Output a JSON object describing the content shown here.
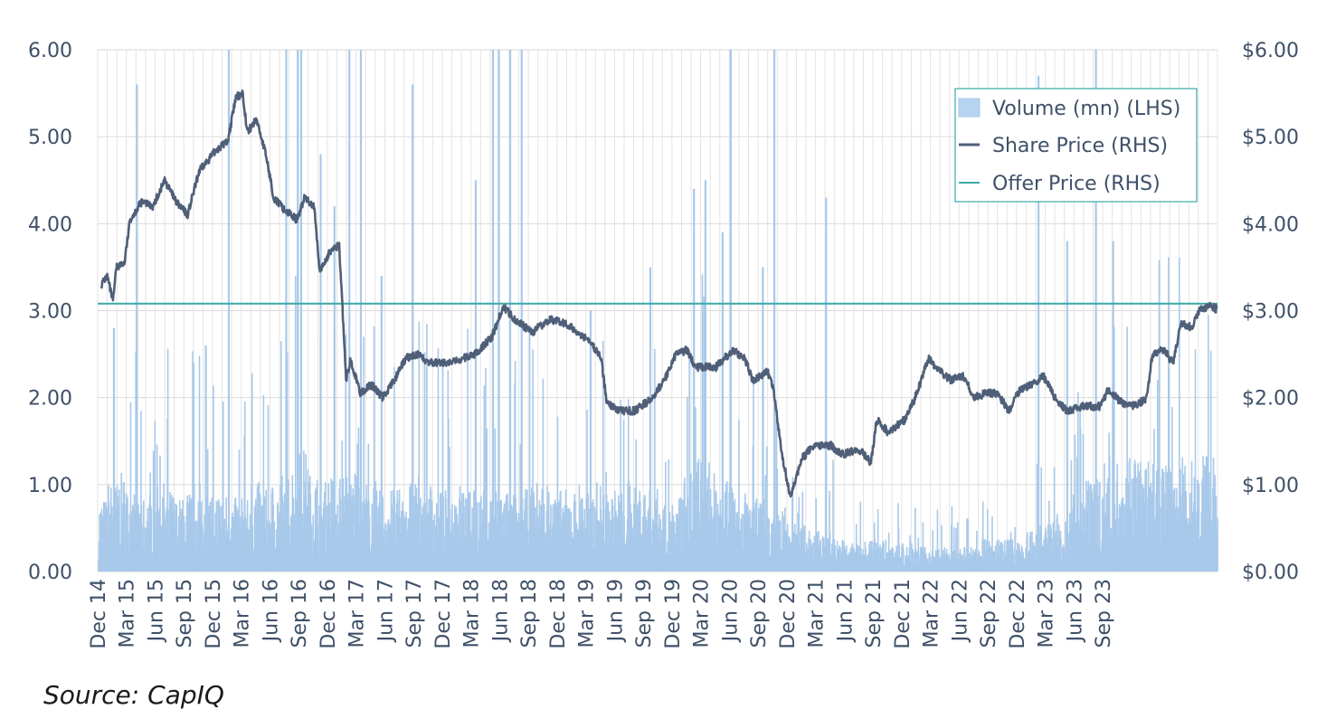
{
  "chart_data": {
    "type": "bar+line",
    "title": "",
    "source": "Source: CapIQ",
    "x_tick_labels": [
      "Dec 14",
      "Mar 15",
      "Jun 15",
      "Sep 15",
      "Dec 15",
      "Mar 16",
      "Jun 16",
      "Sep 16",
      "Dec 16",
      "Mar 17",
      "Jun 17",
      "Sep 17",
      "Dec 17",
      "Mar 18",
      "Jun 18",
      "Sep 18",
      "Dec 18",
      "Mar 19",
      "Jun 19",
      "Sep 19",
      "Dec 19",
      "Mar 20",
      "Jun 20",
      "Sep 20",
      "Dec 20",
      "Mar 21",
      "Jun 21",
      "Sep 21",
      "Dec 21",
      "Mar 22",
      "Jun 22",
      "Sep 22",
      "Dec 22",
      "Mar 23",
      "Jun 23",
      "Sep 23"
    ],
    "y_left": {
      "ticks": [
        "0.00",
        "1.00",
        "2.00",
        "3.00",
        "4.00",
        "5.00",
        "6.00"
      ],
      "range": [
        0,
        6
      ]
    },
    "y_right": {
      "ticks": [
        "$0.00",
        "$1.00",
        "$2.00",
        "$3.00",
        "$4.00",
        "$5.00",
        "$6.00"
      ],
      "range": [
        0,
        6
      ]
    },
    "grid": true,
    "legend_position": "top-right",
    "colors": {
      "volume": "#a8c9ea",
      "share_price": "#4f5f78",
      "offer_price": "#3aa9a6",
      "grid": "#d9d9d9",
      "text": "#3f5068"
    },
    "series": [
      {
        "name": "Volume (mn) (LHS)",
        "type": "bar",
        "axis": "left",
        "baseline_monthly": [
          0.45,
          0.55,
          0.6,
          0.5,
          0.45,
          0.5,
          0.55,
          0.5,
          0.45,
          0.5,
          0.55,
          0.5,
          0.5,
          0.5,
          0.45,
          0.5,
          0.55,
          0.5,
          0.55,
          0.6,
          0.7,
          0.75,
          0.6,
          0.55,
          0.6,
          0.65,
          0.6,
          0.55,
          0.55,
          0.5,
          0.5,
          0.5,
          0.55,
          0.6,
          0.55,
          0.5,
          0.5,
          0.55,
          0.55,
          0.5,
          0.5,
          0.5,
          0.5,
          0.5,
          0.5,
          0.55,
          0.55,
          0.5,
          0.5,
          0.5,
          0.55,
          0.5,
          0.55,
          0.5,
          0.5,
          0.55,
          0.55,
          0.5,
          0.5,
          0.45,
          0.45,
          0.6,
          0.75,
          0.7,
          0.6,
          0.55,
          0.55,
          0.5,
          0.45,
          0.45,
          0.35,
          0.4,
          0.3,
          0.3,
          0.25,
          0.25,
          0.25,
          0.2,
          0.18,
          0.18,
          0.2,
          0.2,
          0.2,
          0.18,
          0.18,
          0.15,
          0.15,
          0.15,
          0.15,
          0.15,
          0.15,
          0.15,
          0.2,
          0.2,
          0.2,
          0.2,
          0.2,
          0.25,
          0.3,
          0.3,
          0.35,
          0.4,
          0.45,
          0.55,
          0.6,
          0.7
        ],
        "peaks": [
          [
            2015.25,
            5.6
          ],
          [
            2015.05,
            2.8
          ],
          [
            2015.85,
            2.6
          ],
          [
            2016.05,
            6
          ],
          [
            2016.55,
            6
          ],
          [
            2016.65,
            6
          ],
          [
            2016.68,
            6
          ],
          [
            2016.85,
            4.8
          ],
          [
            2016.97,
            4.2
          ],
          [
            2017.1,
            6
          ],
          [
            2017.2,
            6
          ],
          [
            2017.38,
            3.4
          ],
          [
            2017.65,
            5.6
          ],
          [
            2018.2,
            4.5
          ],
          [
            2018.35,
            6
          ],
          [
            2018.4,
            6
          ],
          [
            2018.5,
            6
          ],
          [
            2018.6,
            6
          ],
          [
            2019.2,
            3
          ],
          [
            2019.72,
            3.5
          ],
          [
            2020.1,
            4.4
          ],
          [
            2020.2,
            4.5
          ],
          [
            2020.35,
            3.9
          ],
          [
            2020.42,
            6
          ],
          [
            2020.8,
            6
          ],
          [
            2020.7,
            3.5
          ],
          [
            2021.25,
            4.3
          ],
          [
            2023.1,
            5.7
          ],
          [
            2023.35,
            3.8
          ],
          [
            2023.6,
            6
          ],
          [
            2023.75,
            3.8
          ]
        ]
      },
      {
        "name": "Share Price (RHS)",
        "type": "line",
        "axis": "right",
        "points": [
          [
            2014.95,
            3.3
          ],
          [
            2015.0,
            3.4
          ],
          [
            2015.05,
            3.1
          ],
          [
            2015.08,
            3.5
          ],
          [
            2015.15,
            3.55
          ],
          [
            2015.2,
            4.05
          ],
          [
            2015.3,
            4.25
          ],
          [
            2015.4,
            4.2
          ],
          [
            2015.5,
            4.5
          ],
          [
            2015.6,
            4.25
          ],
          [
            2015.7,
            4.1
          ],
          [
            2015.8,
            4.6
          ],
          [
            2015.95,
            4.85
          ],
          [
            2016.05,
            4.95
          ],
          [
            2016.12,
            5.45
          ],
          [
            2016.18,
            5.5
          ],
          [
            2016.22,
            5.05
          ],
          [
            2016.3,
            5.2
          ],
          [
            2016.38,
            4.8
          ],
          [
            2016.45,
            4.3
          ],
          [
            2016.55,
            4.15
          ],
          [
            2016.65,
            4.05
          ],
          [
            2016.72,
            4.3
          ],
          [
            2016.8,
            4.2
          ],
          [
            2016.85,
            3.45
          ],
          [
            2016.95,
            3.7
          ],
          [
            2017.02,
            3.75
          ],
          [
            2017.08,
            2.2
          ],
          [
            2017.12,
            2.45
          ],
          [
            2017.2,
            2.05
          ],
          [
            2017.3,
            2.15
          ],
          [
            2017.4,
            2.0
          ],
          [
            2017.5,
            2.2
          ],
          [
            2017.6,
            2.45
          ],
          [
            2017.7,
            2.5
          ],
          [
            2017.8,
            2.4
          ],
          [
            2018.0,
            2.4
          ],
          [
            2018.2,
            2.5
          ],
          [
            2018.35,
            2.7
          ],
          [
            2018.45,
            3.05
          ],
          [
            2018.55,
            2.9
          ],
          [
            2018.7,
            2.75
          ],
          [
            2018.85,
            2.9
          ],
          [
            2019.0,
            2.85
          ],
          [
            2019.1,
            2.75
          ],
          [
            2019.2,
            2.65
          ],
          [
            2019.3,
            2.45
          ],
          [
            2019.35,
            1.95
          ],
          [
            2019.45,
            1.85
          ],
          [
            2019.6,
            1.85
          ],
          [
            2019.75,
            2.0
          ],
          [
            2019.85,
            2.2
          ],
          [
            2019.95,
            2.5
          ],
          [
            2020.05,
            2.55
          ],
          [
            2020.12,
            2.35
          ],
          [
            2020.3,
            2.35
          ],
          [
            2020.45,
            2.55
          ],
          [
            2020.55,
            2.45
          ],
          [
            2020.62,
            2.2
          ],
          [
            2020.75,
            2.3
          ],
          [
            2020.8,
            2.1
          ],
          [
            2020.88,
            1.3
          ],
          [
            2020.95,
            0.85
          ],
          [
            2021.05,
            1.3
          ],
          [
            2021.15,
            1.45
          ],
          [
            2021.3,
            1.45
          ],
          [
            2021.4,
            1.35
          ],
          [
            2021.55,
            1.4
          ],
          [
            2021.65,
            1.25
          ],
          [
            2021.7,
            1.75
          ],
          [
            2021.8,
            1.6
          ],
          [
            2021.95,
            1.75
          ],
          [
            2022.05,
            2.05
          ],
          [
            2022.15,
            2.45
          ],
          [
            2022.25,
            2.3
          ],
          [
            2022.35,
            2.2
          ],
          [
            2022.45,
            2.25
          ],
          [
            2022.55,
            2.0
          ],
          [
            2022.65,
            2.05
          ],
          [
            2022.75,
            2.05
          ],
          [
            2022.85,
            1.85
          ],
          [
            2022.95,
            2.1
          ],
          [
            2023.05,
            2.15
          ],
          [
            2023.15,
            2.25
          ],
          [
            2023.25,
            2.0
          ],
          [
            2023.35,
            1.85
          ],
          [
            2023.5,
            1.9
          ],
          [
            2023.65,
            1.9
          ],
          [
            2023.72,
            2.1
          ],
          [
            2023.82,
            1.95
          ],
          [
            2023.95,
            1.9
          ],
          [
            2024.05,
            2.0
          ],
          [
            2024.1,
            2.5
          ],
          [
            2024.2,
            2.55
          ],
          [
            2024.28,
            2.4
          ],
          [
            2024.35,
            2.85
          ],
          [
            2024.45,
            2.8
          ],
          [
            2024.5,
            3.0
          ],
          [
            2024.6,
            3.05
          ],
          [
            2024.66,
            3.02
          ]
        ]
      },
      {
        "name": "Offer Price (RHS)",
        "type": "hline",
        "axis": "right",
        "value": 3.08
      }
    ]
  }
}
